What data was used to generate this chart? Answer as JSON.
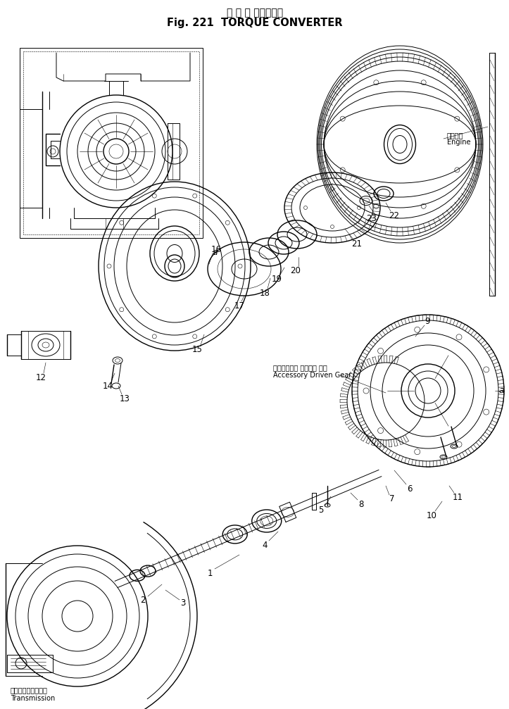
{
  "title_japanese": "ト ル ク コンバータ",
  "title_english": "Fig. 221  TORQUE CONVERTER",
  "bg": "#ffffff",
  "lc": "#000000",
  "figsize": [
    7.23,
    10.07
  ],
  "dpi": 100,
  "engine_ja": "エンジン",
  "engine_en": "Engine",
  "accessory_ja": "アクセサリー ドリブン ギャ",
  "accessory_en": "Accessory Driven Gear",
  "transmission_ja": "トランスミッション",
  "transmission_en": "Transmission"
}
